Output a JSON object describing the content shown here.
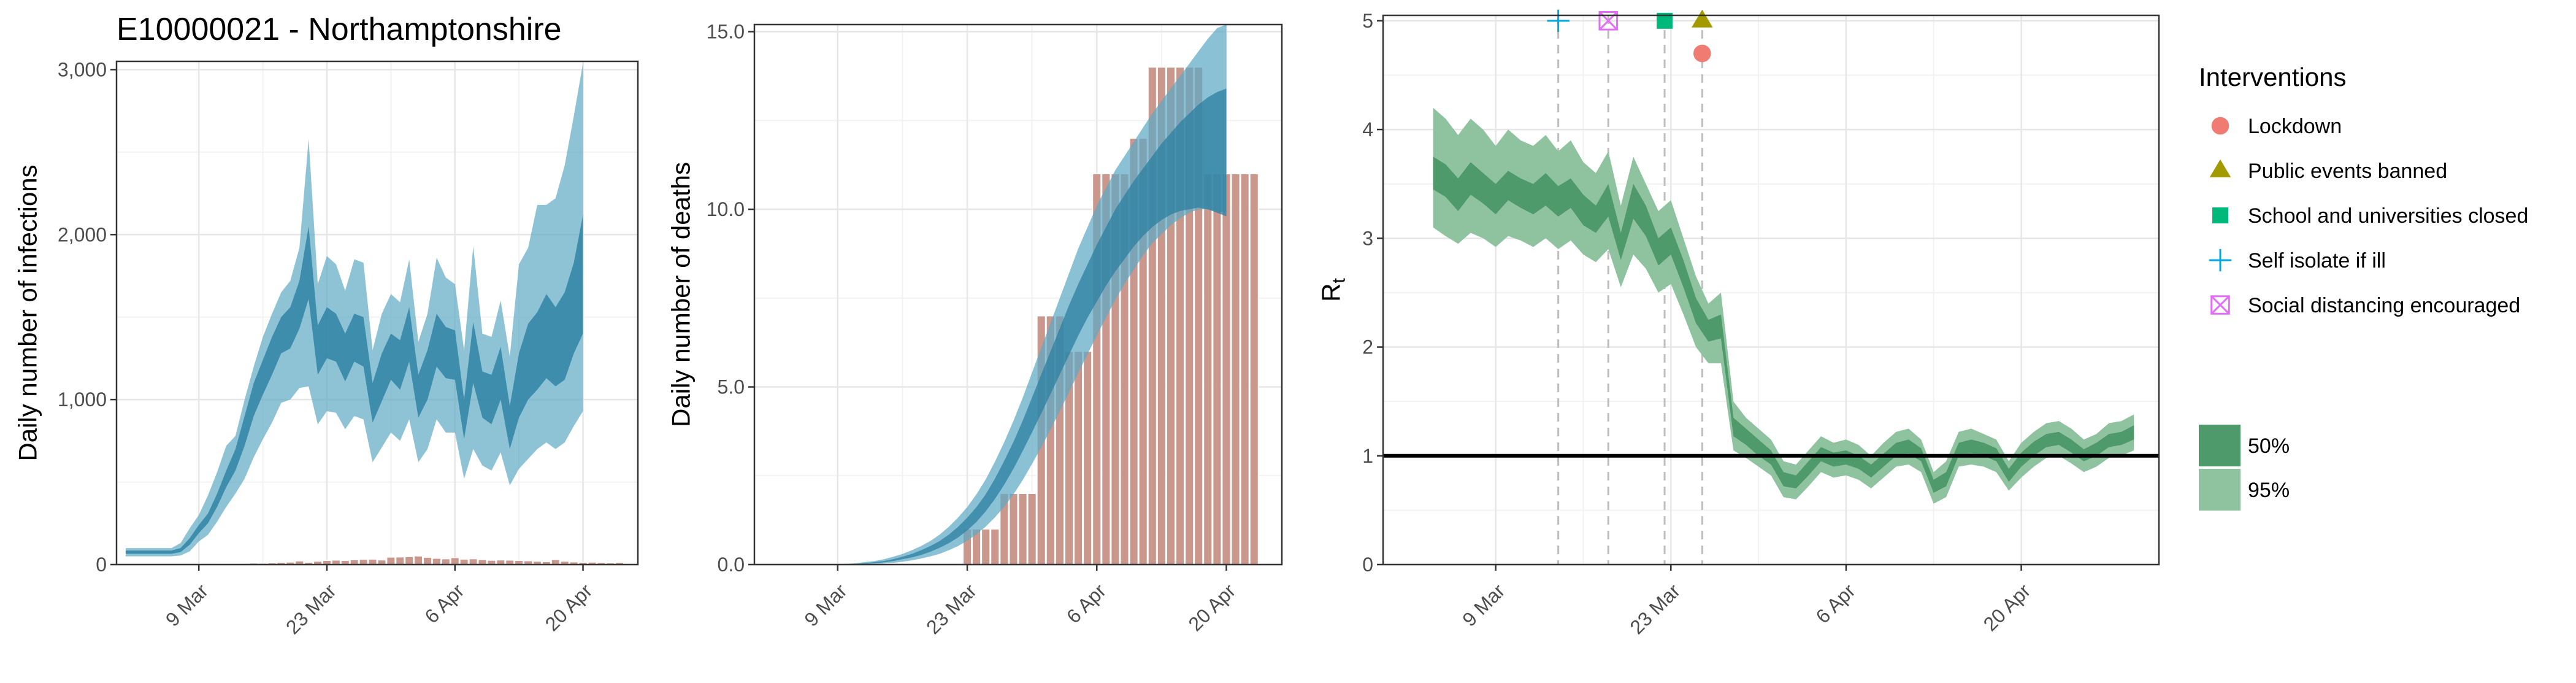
{
  "figure_title": "E10000021 - Northamptonshire",
  "colors": {
    "infection_band": "#5ea9c4",
    "infection_inner": "#2b7fa1",
    "bar": "#c9978c",
    "rt_outer": "#8fc3a0",
    "rt_inner": "#4e9a6a",
    "lockdown": "#f07b72",
    "events": "#a39a00",
    "school": "#00b87a",
    "isolate": "#00a9dd",
    "distancing": "#e26ef7"
  },
  "chart_data": [
    {
      "type": "area",
      "ylabel": "Daily number of infections",
      "xlabel": "",
      "ylim": [
        0,
        3050
      ],
      "x_tick_labels": [
        "9 Mar",
        "23 Mar",
        "6 Apr",
        "20 Apr"
      ],
      "x_tick_days": [
        9,
        23,
        37,
        51
      ],
      "y_ticks": [
        0,
        1000,
        2000,
        3000
      ],
      "y_tick_labels": [
        "0",
        "1,000",
        "2,000",
        "3,000"
      ],
      "start_day": 1,
      "upper95": [
        100,
        100,
        100,
        100,
        100,
        100,
        130,
        220,
        300,
        420,
        560,
        720,
        780,
        1000,
        1200,
        1380,
        1520,
        1650,
        1720,
        1920,
        2580,
        1700,
        1870,
        1820,
        1660,
        1850,
        1830,
        1300,
        1520,
        1640,
        1590,
        1850,
        1350,
        1520,
        1860,
        1740,
        1700,
        1300,
        1930,
        1400,
        1380,
        1600,
        1260,
        1820,
        1920,
        2180,
        2180,
        2220,
        2420,
        2720,
        3040
      ],
      "upper50": [
        85,
        85,
        85,
        85,
        85,
        85,
        100,
        160,
        240,
        310,
        430,
        570,
        700,
        900,
        1100,
        1240,
        1380,
        1500,
        1560,
        1720,
        2050,
        1450,
        1560,
        1520,
        1400,
        1520,
        1500,
        1100,
        1280,
        1400,
        1360,
        1560,
        1150,
        1300,
        1520,
        1440,
        1420,
        1000,
        1470,
        1170,
        1150,
        1320,
        960,
        1280,
        1460,
        1530,
        1640,
        1560,
        1650,
        1830,
        2120
      ],
      "lower50": [
        65,
        65,
        65,
        65,
        65,
        65,
        75,
        120,
        190,
        250,
        350,
        470,
        570,
        720,
        900,
        1030,
        1150,
        1280,
        1310,
        1430,
        1610,
        1150,
        1250,
        1230,
        1110,
        1230,
        1200,
        860,
        990,
        1120,
        1060,
        1230,
        890,
        1000,
        1200,
        1130,
        1120,
        760,
        1100,
        890,
        850,
        1000,
        700,
        890,
        1000,
        1060,
        1130,
        1080,
        1120,
        1280,
        1400
      ],
      "lower95": [
        50,
        50,
        50,
        50,
        50,
        50,
        55,
        80,
        140,
        180,
        260,
        350,
        430,
        520,
        650,
        760,
        860,
        980,
        1000,
        1070,
        1080,
        850,
        930,
        920,
        820,
        900,
        880,
        620,
        710,
        800,
        750,
        880,
        620,
        700,
        880,
        800,
        800,
        520,
        700,
        600,
        570,
        680,
        480,
        580,
        640,
        700,
        740,
        700,
        740,
        840,
        930
      ],
      "bar_x": [
        3,
        4,
        5,
        6,
        7,
        8,
        9,
        10,
        11,
        12,
        13,
        14,
        15,
        16,
        17,
        18,
        19,
        20,
        21,
        22,
        23,
        24,
        25,
        26,
        27,
        28,
        29,
        30,
        31,
        32,
        33,
        34,
        35,
        36,
        37,
        38,
        39,
        40,
        41,
        42,
        43,
        44,
        45,
        46,
        47,
        48,
        49,
        50,
        51,
        52,
        53,
        54,
        55
      ],
      "bar_values": [
        0,
        0,
        0,
        0,
        0,
        1,
        1,
        1,
        2,
        4,
        6,
        7,
        9,
        8,
        10,
        13,
        15,
        22,
        14,
        20,
        25,
        27,
        25,
        29,
        32,
        33,
        28,
        45,
        46,
        48,
        52,
        44,
        38,
        35,
        42,
        33,
        35,
        30,
        26,
        28,
        27,
        25,
        23,
        20,
        18,
        30,
        20,
        16,
        14,
        15,
        12,
        10,
        13
      ]
    },
    {
      "type": "bar",
      "ylabel": "Daily number of deaths",
      "xlabel": "",
      "ylim": [
        0,
        15.2
      ],
      "x_tick_labels": [
        "9 Mar",
        "23 Mar",
        "6 Apr",
        "20 Apr"
      ],
      "x_tick_days": [
        9,
        23,
        37,
        51
      ],
      "y_ticks": [
        0,
        5,
        10,
        15
      ],
      "y_tick_labels": [
        "0.0",
        "5.0",
        "10.0",
        "15.0"
      ],
      "start_day": 1,
      "upper95": [
        0,
        0,
        0,
        0,
        0,
        0,
        0,
        0,
        0.01,
        0.02,
        0.04,
        0.07,
        0.1,
        0.15,
        0.22,
        0.3,
        0.4,
        0.52,
        0.66,
        0.84,
        1.06,
        1.32,
        1.62,
        1.98,
        2.4,
        2.9,
        3.45,
        4.05,
        4.7,
        5.4,
        6.1,
        6.8,
        7.5,
        8.2,
        8.9,
        9.5,
        10.1,
        10.6,
        11.1,
        11.5,
        11.9,
        12.3,
        12.7,
        13.05,
        13.4,
        13.75,
        14.1,
        14.45,
        14.8,
        15.1,
        15.2
      ],
      "upper50": [
        0,
        0,
        0,
        0,
        0,
        0,
        0,
        0,
        0,
        0.01,
        0.02,
        0.04,
        0.07,
        0.1,
        0.15,
        0.22,
        0.3,
        0.4,
        0.52,
        0.66,
        0.84,
        1.06,
        1.32,
        1.62,
        1.98,
        2.42,
        2.92,
        3.46,
        4.05,
        4.7,
        5.35,
        6.0,
        6.65,
        7.3,
        7.9,
        8.45,
        9.0,
        9.5,
        10.0,
        10.4,
        10.8,
        11.15,
        11.5,
        11.85,
        12.15,
        12.45,
        12.7,
        12.95,
        13.15,
        13.3,
        13.4
      ],
      "lower50": [
        0,
        0,
        0,
        0,
        0,
        0,
        0,
        0,
        0,
        0,
        0.01,
        0.02,
        0.04,
        0.06,
        0.1,
        0.15,
        0.2,
        0.27,
        0.36,
        0.47,
        0.6,
        0.76,
        0.96,
        1.2,
        1.5,
        1.85,
        2.25,
        2.7,
        3.2,
        3.72,
        4.25,
        4.8,
        5.35,
        5.9,
        6.45,
        6.95,
        7.4,
        7.85,
        8.25,
        8.6,
        8.95,
        9.25,
        9.5,
        9.7,
        9.85,
        9.95,
        10.0,
        10.05,
        10.0,
        9.9,
        9.8
      ],
      "lower95": [
        0,
        0,
        0,
        0,
        0,
        0,
        0,
        0,
        0,
        0,
        0,
        0.01,
        0.02,
        0.03,
        0.05,
        0.08,
        0.12,
        0.17,
        0.23,
        0.3,
        0.4,
        0.52,
        0.67,
        0.85,
        1.07,
        1.33,
        1.63,
        1.98,
        2.38,
        2.83,
        3.3,
        3.8,
        4.32,
        4.85,
        5.4,
        5.92,
        6.45,
        6.95,
        7.45,
        7.9,
        8.3,
        8.7,
        9.05,
        9.3,
        9.55,
        9.75,
        9.9,
        10.0,
        10.0,
        9.95,
        9.9
      ],
      "bar_x": [
        23,
        24,
        25,
        26,
        27,
        28,
        29,
        30,
        31,
        32,
        33,
        34,
        35,
        36,
        37,
        38,
        39,
        40,
        41,
        42,
        43,
        44,
        45,
        46,
        47,
        48,
        49,
        50,
        51,
        52,
        53,
        54
      ],
      "bar_values": [
        1,
        1,
        1,
        1,
        2,
        2,
        2,
        2,
        7,
        7,
        7,
        6,
        6,
        6,
        11,
        11,
        11,
        11,
        12,
        12,
        14,
        14,
        14,
        14,
        14,
        14,
        11,
        11,
        11,
        11,
        11,
        11
      ]
    },
    {
      "type": "line",
      "ylabel": "R",
      "ylabel_subscript": "t",
      "xlabel": "",
      "ylim": [
        0,
        5.05
      ],
      "x_tick_labels": [
        "9 Mar",
        "23 Mar",
        "6 Apr",
        "20 Apr"
      ],
      "x_tick_days": [
        9,
        23,
        37,
        51
      ],
      "y_ticks": [
        0,
        1,
        2,
        3,
        4,
        5
      ],
      "y_tick_labels": [
        "0",
        "1",
        "2",
        "3",
        "4",
        "5"
      ],
      "start_day": 4,
      "upper95": [
        4.2,
        4.1,
        3.95,
        4.1,
        4.0,
        3.85,
        4.0,
        3.9,
        3.85,
        3.95,
        3.8,
        3.9,
        3.7,
        3.6,
        3.8,
        3.3,
        3.75,
        3.5,
        3.25,
        3.35,
        3.0,
        2.65,
        2.4,
        2.5,
        1.5,
        1.35,
        1.25,
        1.15,
        0.95,
        0.92,
        1.05,
        1.18,
        1.12,
        1.15,
        1.1,
        1.0,
        1.12,
        1.22,
        1.25,
        1.15,
        0.85,
        0.95,
        1.22,
        1.25,
        1.2,
        1.15,
        0.95,
        1.12,
        1.22,
        1.3,
        1.32,
        1.25,
        1.15,
        1.2,
        1.3,
        1.32,
        1.38
      ],
      "upper50": [
        3.75,
        3.68,
        3.55,
        3.7,
        3.6,
        3.5,
        3.62,
        3.55,
        3.5,
        3.6,
        3.48,
        3.55,
        3.4,
        3.3,
        3.5,
        3.05,
        3.5,
        3.3,
        3.0,
        3.1,
        2.8,
        2.45,
        2.25,
        2.3,
        1.35,
        1.25,
        1.15,
        1.05,
        0.85,
        0.82,
        0.95,
        1.08,
        1.03,
        1.05,
        1.0,
        0.92,
        1.02,
        1.12,
        1.15,
        1.07,
        0.78,
        0.85,
        1.12,
        1.15,
        1.12,
        1.07,
        0.88,
        1.03,
        1.13,
        1.2,
        1.22,
        1.15,
        1.06,
        1.12,
        1.2,
        1.22,
        1.28
      ],
      "lower50": [
        3.45,
        3.38,
        3.25,
        3.4,
        3.32,
        3.22,
        3.35,
        3.28,
        3.22,
        3.3,
        3.2,
        3.28,
        3.12,
        3.05,
        3.2,
        2.8,
        3.18,
        3.02,
        2.75,
        2.85,
        2.55,
        2.22,
        2.05,
        2.08,
        1.18,
        1.1,
        1.0,
        0.92,
        0.72,
        0.7,
        0.82,
        0.95,
        0.9,
        0.92,
        0.88,
        0.8,
        0.9,
        1.0,
        1.02,
        0.95,
        0.66,
        0.72,
        1.0,
        1.02,
        1.0,
        0.95,
        0.76,
        0.9,
        1.0,
        1.08,
        1.1,
        1.03,
        0.95,
        1.0,
        1.08,
        1.1,
        1.15
      ],
      "lower95": [
        3.1,
        3.02,
        2.95,
        3.05,
        3.0,
        2.92,
        3.02,
        2.98,
        2.92,
        3.0,
        2.9,
        2.98,
        2.85,
        2.78,
        2.9,
        2.55,
        2.85,
        2.72,
        2.5,
        2.58,
        2.3,
        2.0,
        1.85,
        1.85,
        1.05,
        0.98,
        0.9,
        0.82,
        0.62,
        0.6,
        0.72,
        0.85,
        0.8,
        0.82,
        0.78,
        0.7,
        0.8,
        0.9,
        0.92,
        0.85,
        0.56,
        0.62,
        0.9,
        0.92,
        0.9,
        0.85,
        0.68,
        0.8,
        0.9,
        0.98,
        1.0,
        0.93,
        0.85,
        0.9,
        0.98,
        1.0,
        1.05
      ],
      "reference_y": 1,
      "intervention_days": [
        14,
        18,
        22.5,
        25.5
      ],
      "intervention_markers": [
        {
          "name": "Self isolate if ill",
          "day": 14,
          "y": 5.0,
          "shape": "plus"
        },
        {
          "name": "Social distancing encouraged",
          "day": 18,
          "y": 5.0,
          "shape": "boxcross"
        },
        {
          "name": "School and universities closed",
          "day": 22.5,
          "y": 5.0,
          "shape": "square"
        },
        {
          "name": "Public events banned",
          "day": 25.5,
          "y": 5.0,
          "shape": "triangle"
        },
        {
          "name": "Lockdown",
          "day": 25.5,
          "y": 4.7,
          "shape": "circle"
        }
      ]
    }
  ],
  "legend": {
    "interventions_title": "Interventions",
    "interventions": [
      {
        "label": "Lockdown",
        "shape": "circle"
      },
      {
        "label": "Public events banned",
        "shape": "triangle"
      },
      {
        "label": "School and universities closed",
        "shape": "square"
      },
      {
        "label": "Self isolate if ill",
        "shape": "plus"
      },
      {
        "label": "Social distancing encouraged",
        "shape": "boxcross"
      }
    ],
    "bands": [
      {
        "label": "50%"
      },
      {
        "label": "95%"
      }
    ]
  }
}
